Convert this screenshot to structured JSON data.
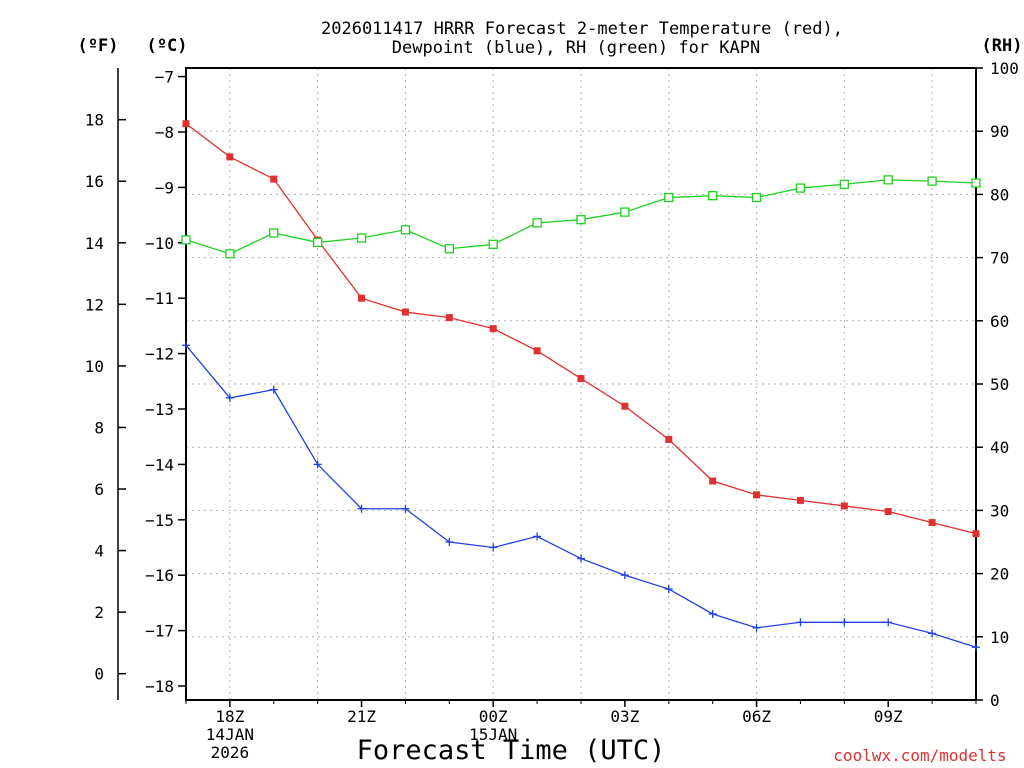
{
  "chart_data": {
    "type": "line",
    "title_line1": "2026011417 HRRR Forecast 2-meter Temperature (red),",
    "title_line2": "Dewpoint (blue), RH (green) for KAPN",
    "xlabel": "Forecast Time (UTC)",
    "credit": "coolwx.com/modelts",
    "units": {
      "left_outer": "(ºF)",
      "left_inner": "(ºC)",
      "right": "(RH)"
    },
    "x_hours": [
      0,
      1,
      2,
      3,
      4,
      5,
      6,
      7,
      8,
      9,
      10,
      11,
      12,
      13,
      14,
      15,
      16,
      17,
      18
    ],
    "x_ticks": [
      {
        "hour": 1,
        "lines": [
          "18Z",
          "14JAN",
          "2026"
        ]
      },
      {
        "hour": 4,
        "lines": [
          "21Z"
        ]
      },
      {
        "hour": 7,
        "lines": [
          "00Z",
          "15JAN"
        ]
      },
      {
        "hour": 10,
        "lines": [
          "03Z"
        ]
      },
      {
        "hour": 13,
        "lines": [
          "06Z"
        ]
      },
      {
        "hour": 16,
        "lines": [
          "09Z"
        ]
      }
    ],
    "celsius_axis": {
      "min": -18,
      "max": -7,
      "ticks": [
        "-7",
        "-8",
        "-9",
        "-10",
        "-11",
        "-12",
        "-13",
        "-14",
        "-15",
        "-16",
        "-17",
        "-18"
      ]
    },
    "fahrenheit_axis": {
      "ticks": [
        "18",
        "16",
        "14",
        "12",
        "10",
        "8",
        "6",
        "4",
        "2",
        "0"
      ]
    },
    "rh_axis": {
      "min": 0,
      "max": 100,
      "ticks": [
        "100",
        "90",
        "80",
        "70",
        "60",
        "50",
        "40",
        "30",
        "20",
        "10",
        "0"
      ]
    },
    "series": [
      {
        "name": "Temperature",
        "color": "#e03030",
        "marker": "filled-square",
        "axis": "celsius",
        "values": [
          -7.85,
          -8.45,
          -8.85,
          -9.95,
          -11.0,
          -11.25,
          -11.35,
          -11.55,
          -11.95,
          -12.45,
          -12.95,
          -13.55,
          -14.3,
          -14.55,
          -14.65,
          -14.75,
          -14.85,
          -15.05,
          -15.25
        ]
      },
      {
        "name": "Dewpoint",
        "color": "#2040e0",
        "marker": "plus",
        "axis": "celsius",
        "values": [
          -11.85,
          -12.8,
          -12.65,
          -14.0,
          -14.8,
          -14.8,
          -15.4,
          -15.5,
          -15.3,
          -15.7,
          -16.0,
          -16.25,
          -16.7,
          -16.95,
          -16.85,
          -16.85,
          -16.85,
          -17.05,
          -17.3
        ]
      },
      {
        "name": "RH",
        "color": "#20d020",
        "marker": "open-square",
        "axis": "rh",
        "values": [
          72.8,
          70.6,
          73.9,
          72.4,
          73.1,
          74.4,
          71.4,
          72.1,
          75.5,
          76.0,
          77.2,
          79.5,
          79.8,
          79.5,
          81.0,
          81.6,
          82.3,
          82.1,
          81.8
        ]
      }
    ]
  }
}
